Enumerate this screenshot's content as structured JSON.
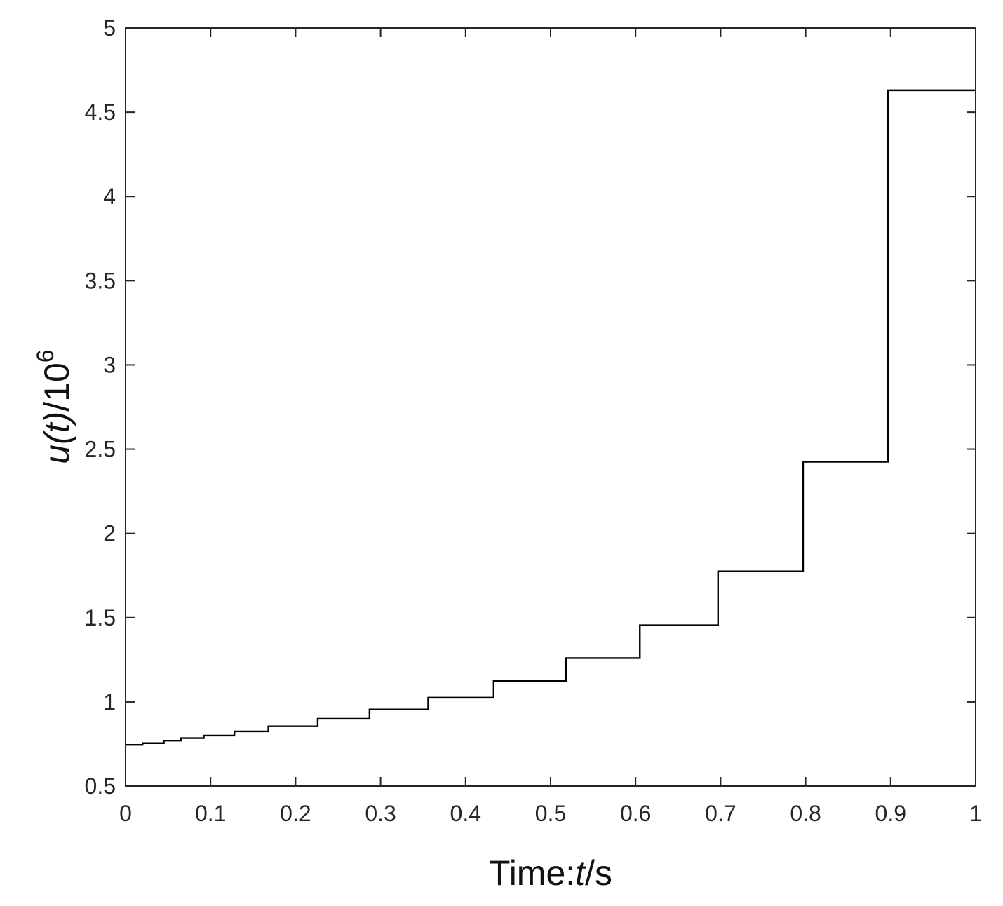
{
  "chart_data": {
    "type": "line",
    "style": "step",
    "series": [
      {
        "x": [
          0,
          0.02,
          0.045,
          0.065,
          0.092,
          0.128,
          0.168,
          0.226,
          0.287,
          0.356,
          0.433,
          0.518,
          0.605,
          0.697,
          0.797,
          0.897,
          1.0
        ],
        "y": [
          0.745,
          0.755,
          0.77,
          0.785,
          0.8,
          0.825,
          0.855,
          0.9,
          0.955,
          1.025,
          1.125,
          1.26,
          1.455,
          1.775,
          2.425,
          4.63,
          4.63
        ]
      }
    ],
    "xlim": [
      0,
      1
    ],
    "ylim": [
      0.5,
      5
    ],
    "xticks": [
      "0",
      "0.1",
      "0.2",
      "0.3",
      "0.4",
      "0.5",
      "0.6",
      "0.7",
      "0.8",
      "0.9",
      "1"
    ],
    "yticks": [
      "0.5",
      "1",
      "1.5",
      "2",
      "2.5",
      "3",
      "3.5",
      "4",
      "4.5",
      "5"
    ],
    "xlabel": {
      "prefix": "Time:",
      "var": "t",
      "suffix": "/s"
    },
    "ylabel": {
      "var": "u",
      "paren_open": "(",
      "arg": "t",
      "paren_close": ")",
      "denom": "/10",
      "exp": "6"
    },
    "grid": false,
    "line_color": "#000000",
    "axis_color": "#262626"
  }
}
